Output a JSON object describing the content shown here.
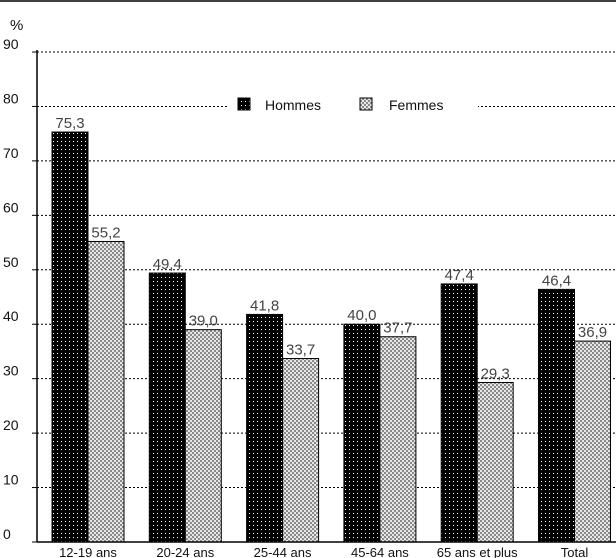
{
  "chart_data": {
    "type": "bar",
    "ylabel": "%",
    "ylim": [
      0,
      90
    ],
    "yticks": [
      0,
      10,
      20,
      30,
      40,
      50,
      60,
      70,
      80,
      90
    ],
    "grid": "horizontal dotted",
    "legend_position": "top",
    "categories": [
      "12-19 ans",
      "20-24 ans",
      "25-44 ans",
      "45-64 ans",
      "65 ans et plus",
      "Total"
    ],
    "series": [
      {
        "name": "Hommes",
        "values": [
          75.3,
          49.4,
          41.8,
          40.0,
          47.4,
          46.4
        ],
        "labels": [
          "75,3",
          "49,4",
          "41,8",
          "40,0",
          "47,4",
          "46,4"
        ],
        "color": "#000000",
        "pattern": "black with white dots"
      },
      {
        "name": "Femmes",
        "values": [
          55.2,
          39.0,
          33.7,
          37.7,
          29.3,
          36.9
        ],
        "labels": [
          "55,2",
          "39,0",
          "33,7",
          "37,7",
          "29,3",
          "36,9"
        ],
        "color": "#b8b8b8",
        "pattern": "light grey crosshatch"
      }
    ]
  }
}
